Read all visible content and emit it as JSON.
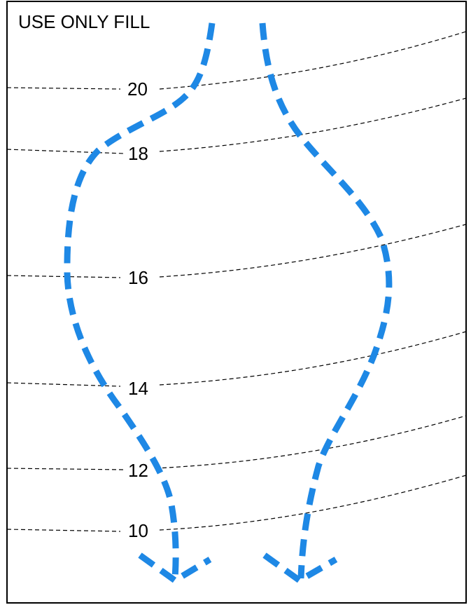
{
  "title": "USE ONLY FILL",
  "colors": {
    "arrow": "#1e88e5",
    "contour": "#000000",
    "frame": "#000000"
  },
  "contours": [
    {
      "label": "20"
    },
    {
      "label": "18"
    },
    {
      "label": "16"
    },
    {
      "label": "14"
    },
    {
      "label": "12"
    },
    {
      "label": "10"
    }
  ],
  "arrows": [
    {
      "name": "left-flow-arrow",
      "direction": "down"
    },
    {
      "name": "right-flow-arrow",
      "direction": "down"
    }
  ]
}
